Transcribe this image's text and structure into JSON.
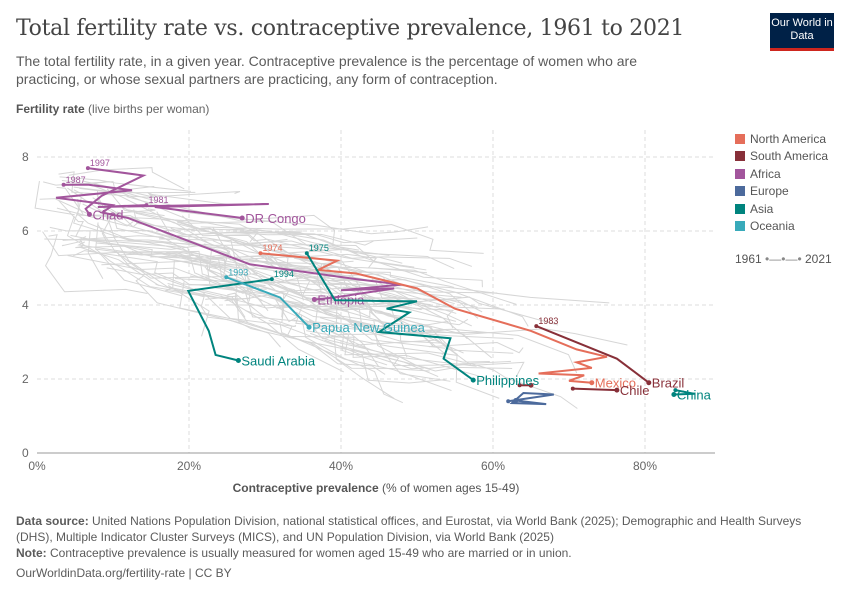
{
  "header": {
    "title": "Total fertility rate vs. contraceptive prevalence, 1961 to 2021",
    "subtitle": "The total fertility rate, in a given year. Contraceptive prevalence is the percentage of women who are practicing, or whose sexual partners are practicing, any form of contraception.",
    "logo": "Our World in Data"
  },
  "chart_data": {
    "type": "scatter",
    "xlabel_bold": "Contraceptive prevalence",
    "xlabel_rest": "(% of women ages 15-49)",
    "ylabel_bold": "Fertility rate",
    "ylabel_rest": "(live births per woman)",
    "xlim": [
      0,
      89
    ],
    "ylim": [
      0,
      8.8
    ],
    "xticks": [
      "0%",
      "20%",
      "40%",
      "60%",
      "80%"
    ],
    "xtick_values": [
      0,
      20,
      40,
      60,
      80
    ],
    "yticks": [
      "0",
      "2",
      "4",
      "6",
      "8"
    ],
    "ytick_values": [
      0,
      2,
      4,
      6,
      8
    ],
    "grid": true,
    "legend": [
      {
        "name": "North America",
        "color": "#e56e5a"
      },
      {
        "name": "South America",
        "color": "#883039"
      },
      {
        "name": "Africa",
        "color": "#a2559c"
      },
      {
        "name": "Europe",
        "color": "#4c6a9c"
      },
      {
        "name": "Asia",
        "color": "#00847e"
      },
      {
        "name": "Oceania",
        "color": "#38aaba"
      }
    ],
    "time_legend": {
      "start": "1961",
      "end": "2021"
    },
    "series": [
      {
        "name": "Chad",
        "region": "Africa",
        "start_label": "1997",
        "points": [
          [
            6.7,
            7.7
          ],
          [
            14,
            7.5
          ],
          [
            8.5,
            6.95
          ],
          [
            6.4,
            6.6
          ],
          [
            6.9,
            6.45
          ]
        ]
      },
      {
        "name": "Ethiopia",
        "region": "Africa",
        "start_label": "1987",
        "points": [
          [
            3.5,
            7.25
          ],
          [
            6.8,
            7.25
          ],
          [
            12.5,
            7.1
          ],
          [
            2.5,
            6.9
          ],
          [
            10,
            6.7
          ],
          [
            8.6,
            6.5
          ],
          [
            12,
            6.35
          ],
          [
            28,
            5.1
          ],
          [
            42,
            4.7
          ],
          [
            48,
            4.55
          ],
          [
            40,
            4.4
          ],
          [
            47,
            4.45
          ],
          [
            39,
            4.2
          ],
          [
            36.5,
            4.15
          ]
        ]
      },
      {
        "name": "DR Congo",
        "region": "Africa",
        "start_label": "1981",
        "points": [
          [
            14.4,
            6.7
          ],
          [
            8,
            6.65
          ],
          [
            30.5,
            6.73
          ],
          [
            15.5,
            6.65
          ],
          [
            27,
            6.35
          ]
        ]
      },
      {
        "name": "Mexico",
        "region": "North America",
        "start_label": "1974",
        "points": [
          [
            29.4,
            5.4
          ],
          [
            39.5,
            5.2
          ],
          [
            37,
            4.95
          ],
          [
            42,
            4.85
          ],
          [
            50,
            4.45
          ],
          [
            55,
            3.9
          ],
          [
            65,
            3.3
          ],
          [
            71,
            2.8
          ],
          [
            75,
            2.6
          ],
          [
            71,
            2.45
          ],
          [
            73,
            2.3
          ],
          [
            66,
            2.15
          ],
          [
            72,
            2.1
          ],
          [
            70,
            1.95
          ],
          [
            73,
            1.9
          ]
        ]
      },
      {
        "name": "Brazil",
        "region": "South America",
        "start_label": "1983",
        "points": [
          [
            65.7,
            3.43
          ],
          [
            76.3,
            2.55
          ],
          [
            80.5,
            1.9
          ]
        ]
      },
      {
        "name": "Chile",
        "region": "South America",
        "start_label": "",
        "points": [
          [
            70.5,
            1.74
          ],
          [
            76.3,
            1.7
          ]
        ]
      },
      {
        "name": "",
        "region": "South America",
        "start_label": "",
        "points": [
          [
            63.5,
            1.83
          ],
          [
            65,
            1.83
          ]
        ]
      },
      {
        "name": "",
        "region": "Europe",
        "start_label": "",
        "points": [
          [
            62,
            1.4
          ],
          [
            68,
            1.58
          ],
          [
            64,
            1.62
          ],
          [
            62.5,
            1.35
          ],
          [
            67,
            1.32
          ],
          [
            63,
            1.42
          ]
        ]
      },
      {
        "name": "Philippines",
        "region": "Asia",
        "start_label": "1975",
        "points": [
          [
            35.5,
            5.4
          ],
          [
            39.2,
            4.13
          ],
          [
            47.8,
            4.1
          ],
          [
            50,
            4.1
          ],
          [
            46,
            3.9
          ],
          [
            49,
            3.8
          ],
          [
            45,
            3.27
          ],
          [
            54.4,
            3.1
          ],
          [
            53.5,
            2.55
          ],
          [
            57.4,
            1.97
          ]
        ]
      },
      {
        "name": "Saudi Arabia",
        "region": "Asia",
        "start_label": "1994",
        "points": [
          [
            30.9,
            4.7
          ],
          [
            19.9,
            4.38
          ],
          [
            22.6,
            3.3
          ],
          [
            23.5,
            2.65
          ],
          [
            26.5,
            2.5
          ]
        ]
      },
      {
        "name": "China",
        "region": "Asia",
        "start_label": "",
        "points": [
          [
            84,
            1.7
          ],
          [
            86.5,
            1.6
          ],
          [
            83.8,
            1.58
          ]
        ]
      },
      {
        "name": "Papua New Guinea",
        "region": "Oceania",
        "start_label": "1993",
        "points": [
          [
            24.9,
            4.75
          ],
          [
            32,
            4.2
          ],
          [
            35.8,
            3.4
          ]
        ]
      }
    ]
  },
  "footer": {
    "source_label": "Data source:",
    "source": "United Nations Population Division, national statistical offices, and Eurostat, via World Bank (2025); Demographic and Health Surveys (DHS), Multiple Indicator Cluster Surveys (MICS), and UN Population Division, via World Bank (2025)",
    "note_label": "Note:",
    "note": "Contraceptive prevalence is usually measured for women aged 15-49 who are married or in union.",
    "url": "OurWorldinData.org/fertility-rate | CC BY"
  }
}
